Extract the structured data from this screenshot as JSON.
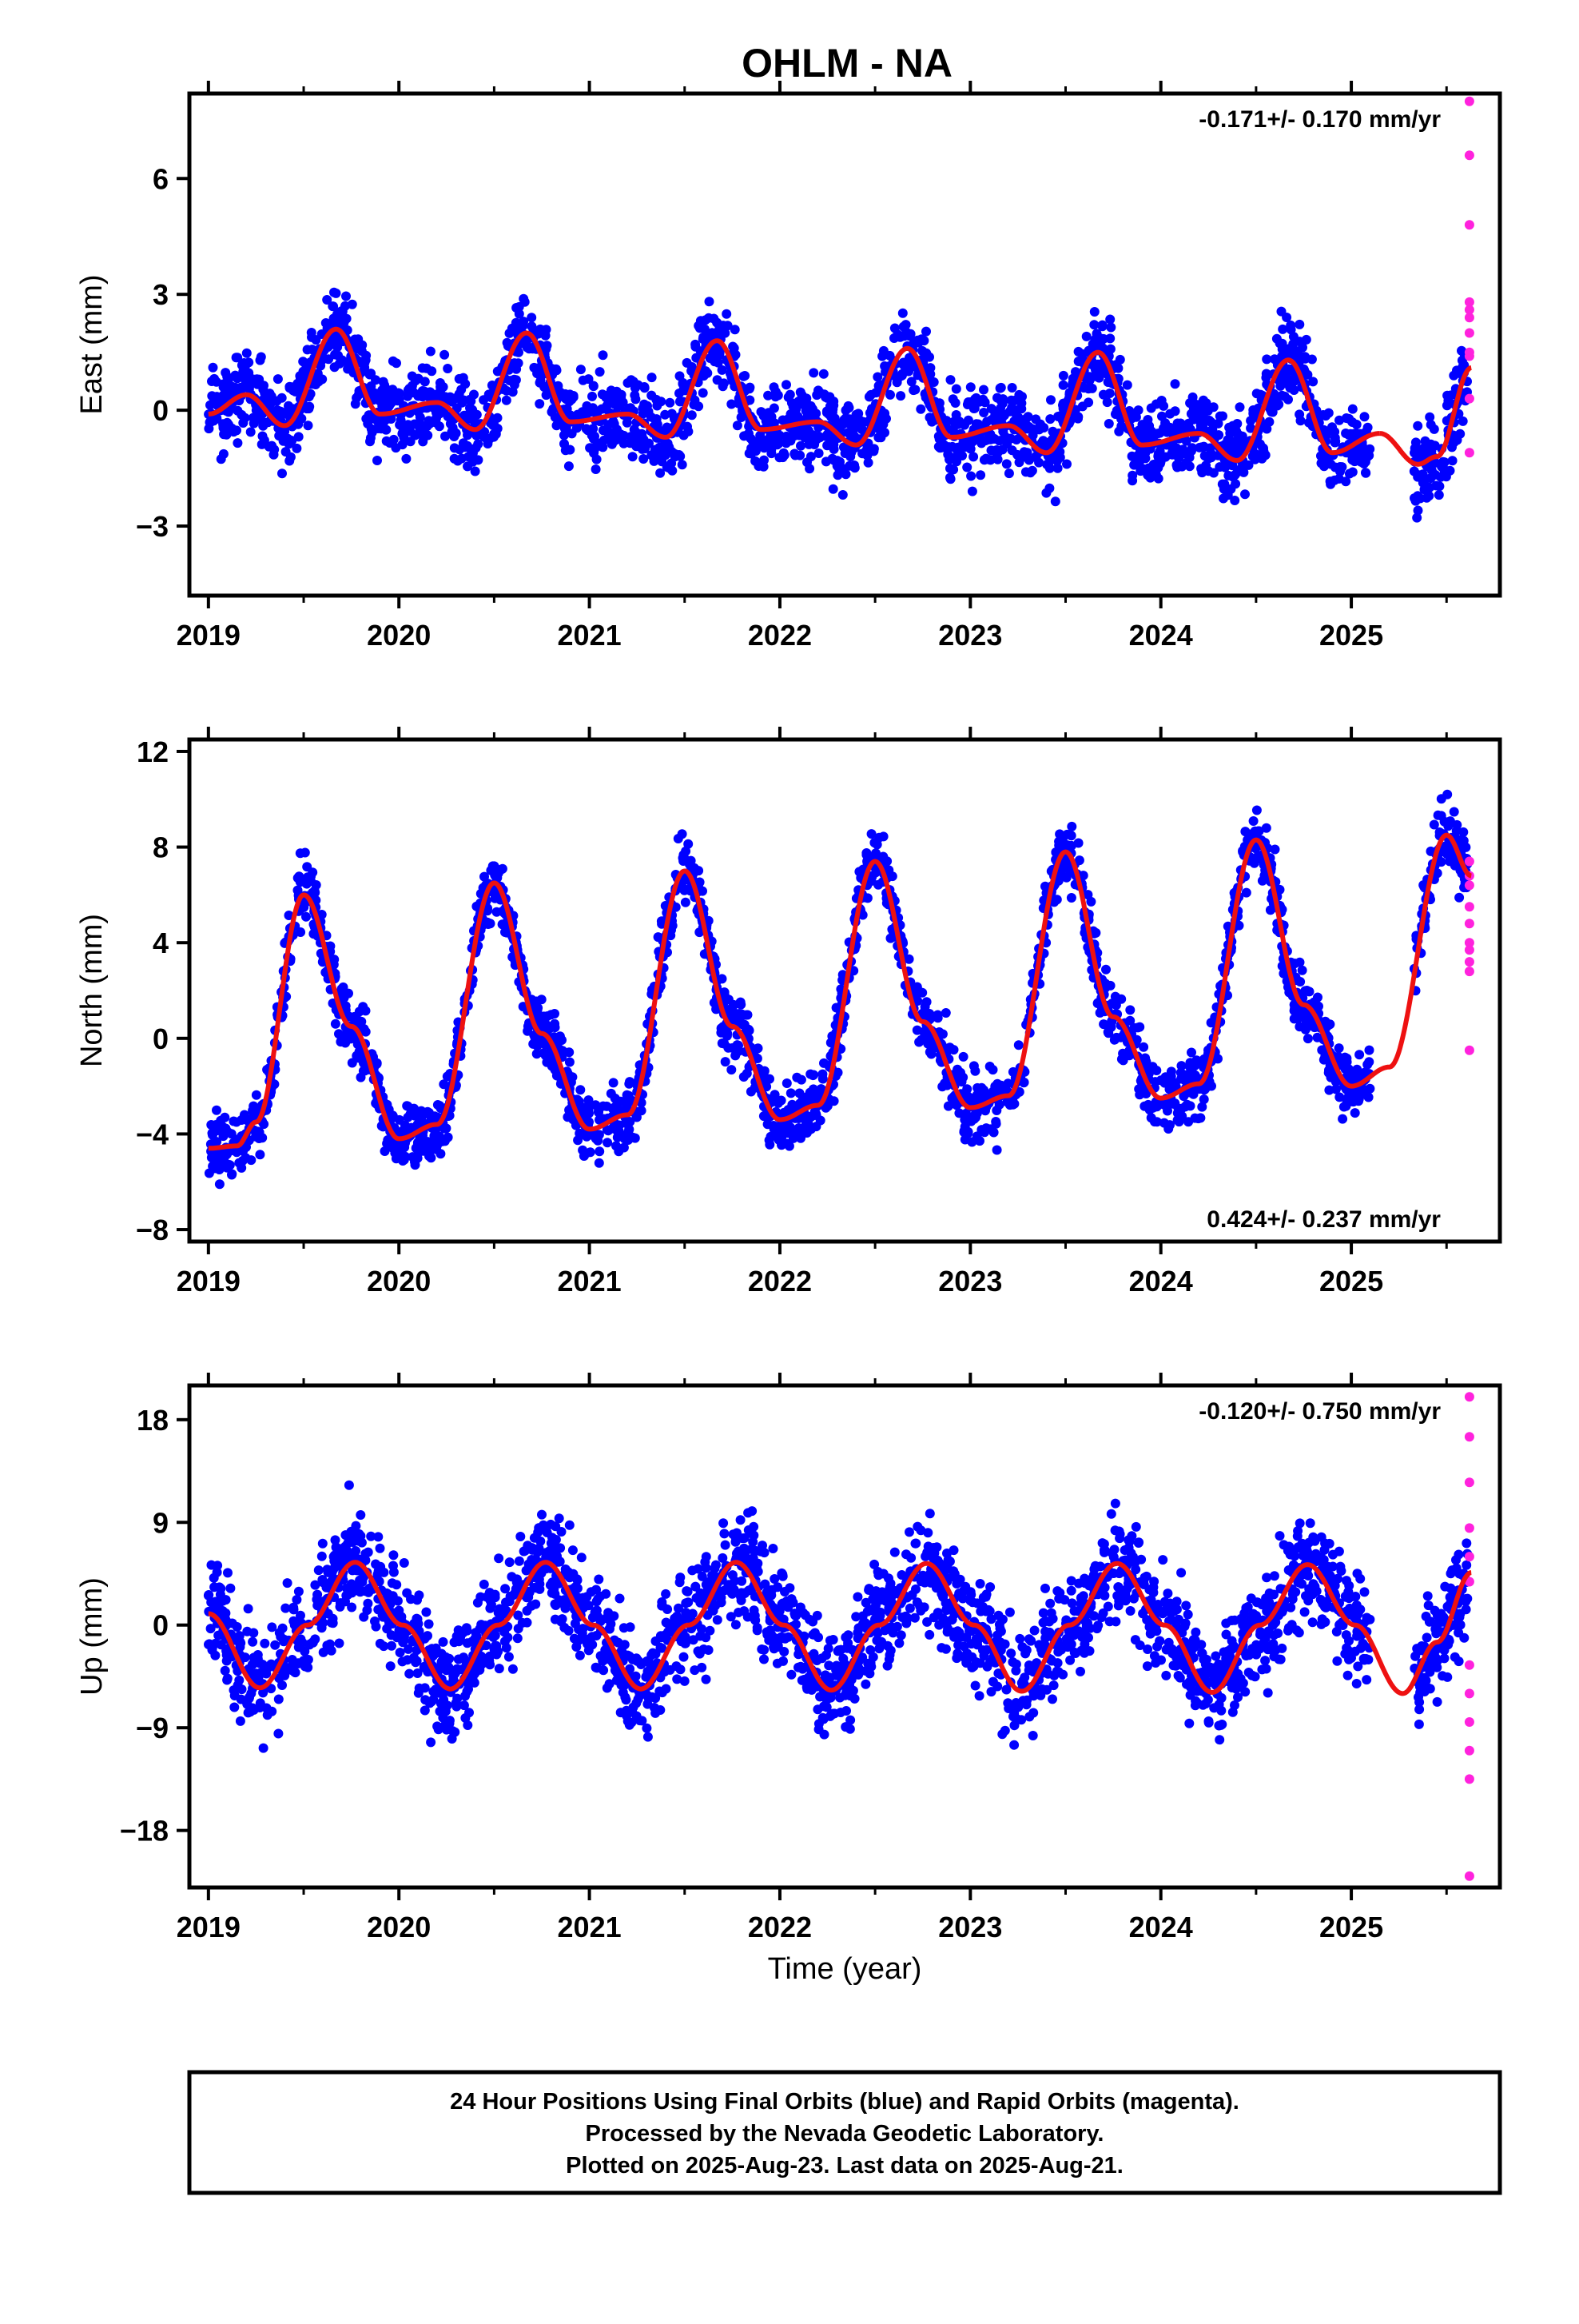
{
  "chart_data": [
    {
      "type": "scatter",
      "title": "OHLM - NA",
      "ylabel": "East (mm)",
      "xlabel": "",
      "xlim": [
        2018.9,
        2025.78
      ],
      "ylim": [
        -4.8,
        8.2
      ],
      "yticks": [
        -3,
        0,
        3,
        6
      ],
      "xticks": [
        2019,
        2020,
        2021,
        2022,
        2023,
        2024,
        2025
      ],
      "rate": "-0.171+/- 0.170 mm/yr",
      "rate_position": "top-right",
      "grid": false,
      "model": {
        "color": "#ee1111",
        "segments": [
          {
            "x": [
              2019.0,
              2019.2,
              2019.4,
              2019.67,
              2019.9,
              2020.2,
              2020.4,
              2020.67,
              2020.9,
              2021.2,
              2021.4,
              2021.67,
              2021.9,
              2022.2,
              2022.4,
              2022.67,
              2022.9,
              2023.2,
              2023.4,
              2023.67,
              2023.9,
              2024.2,
              2024.4,
              2024.67,
              2024.9,
              2025.15
            ],
            "y": [
              -0.1,
              0.4,
              -0.4,
              2.1,
              -0.1,
              0.2,
              -0.5,
              2.0,
              -0.3,
              -0.1,
              -0.7,
              1.8,
              -0.5,
              -0.3,
              -0.9,
              1.6,
              -0.7,
              -0.4,
              -1.1,
              1.5,
              -0.9,
              -0.6,
              -1.3,
              1.3,
              -1.1,
              -0.6
            ]
          },
          {
            "x": [
              2025.15,
              2025.35,
              2025.45,
              2025.63
            ],
            "y": [
              -0.6,
              -1.4,
              -1.2,
              1.1
            ]
          }
        ]
      },
      "series": [
        {
          "name": "Final Orbits",
          "color": "#0000ff",
          "gen": {
            "seed": 11,
            "spans": [
              [
                2019.0,
                2025.1
              ],
              [
                2025.33,
                2025.61
              ]
            ],
            "count": 2400,
            "anchors": [
              [
                2019.0,
                -0.1
              ],
              [
                2019.2,
                0.4
              ],
              [
                2019.4,
                -0.4
              ],
              [
                2019.67,
                2.1
              ],
              [
                2019.9,
                -0.1
              ],
              [
                2020.2,
                0.2
              ],
              [
                2020.4,
                -0.5
              ],
              [
                2020.67,
                2.0
              ],
              [
                2020.9,
                -0.3
              ],
              [
                2021.2,
                -0.1
              ],
              [
                2021.4,
                -0.7
              ],
              [
                2021.67,
                1.8
              ],
              [
                2021.9,
                -0.5
              ],
              [
                2022.2,
                -0.3
              ],
              [
                2022.4,
                -0.9
              ],
              [
                2022.67,
                1.6
              ],
              [
                2022.9,
                -0.7
              ],
              [
                2023.2,
                -0.4
              ],
              [
                2023.4,
                -1.1
              ],
              [
                2023.67,
                1.5
              ],
              [
                2023.9,
                -0.9
              ],
              [
                2024.2,
                -0.6
              ],
              [
                2024.4,
                -1.3
              ],
              [
                2024.67,
                1.3
              ],
              [
                2024.9,
                -1.1
              ],
              [
                2025.15,
                -0.6
              ],
              [
                2025.35,
                -1.4
              ],
              [
                2025.45,
                -1.2
              ],
              [
                2025.63,
                1.1
              ]
            ],
            "noise": 0.85
          }
        },
        {
          "name": "Rapid Orbits",
          "color": "#ff22dd",
          "x": [
            2025.62,
            2025.62,
            2025.62,
            2025.62,
            2025.62,
            2025.62,
            2025.62,
            2025.62,
            2025.62,
            2025.62,
            2025.62
          ],
          "values": [
            8.0,
            6.6,
            4.8,
            2.8,
            2.6,
            2.4,
            2.0,
            1.5,
            1.4,
            0.3,
            -1.1
          ]
        }
      ]
    },
    {
      "type": "scatter",
      "title": "",
      "ylabel": "North (mm)",
      "xlabel": "",
      "xlim": [
        2018.9,
        2025.78
      ],
      "ylim": [
        -8.5,
        12.5
      ],
      "yticks": [
        -8,
        -4,
        0,
        4,
        8,
        12
      ],
      "xticks": [
        2019,
        2020,
        2021,
        2022,
        2023,
        2024,
        2025
      ],
      "rate": "0.424+/- 0.237 mm/yr",
      "rate_position": "bottom-right",
      "grid": false,
      "model": {
        "color": "#ee1111",
        "segments": [
          {
            "x": [
              2019.0,
              2019.15,
              2019.25,
              2019.5,
              2019.75,
              2020.0,
              2020.2,
              2020.5,
              2020.75,
              2021.0,
              2021.2,
              2021.5,
              2021.75,
              2022.0,
              2022.2,
              2022.5,
              2022.75,
              2023.0,
              2023.2,
              2023.5,
              2023.75,
              2024.0,
              2024.2,
              2024.5,
              2024.75,
              2025.0,
              2025.2,
              2025.5,
              2025.63
            ],
            "y": [
              -4.6,
              -4.5,
              -3.5,
              6.0,
              0.5,
              -4.2,
              -3.6,
              6.5,
              0.2,
              -3.8,
              -3.2,
              7.0,
              0.5,
              -3.4,
              -2.8,
              7.4,
              0.7,
              -2.9,
              -2.4,
              7.8,
              0.9,
              -2.5,
              -1.9,
              8.3,
              1.4,
              -2.0,
              -1.2,
              8.5,
              6.8
            ]
          }
        ]
      },
      "series": [
        {
          "name": "Final Orbits",
          "color": "#0000ff",
          "gen": {
            "seed": 22,
            "spans": [
              [
                2019.0,
                2025.1
              ],
              [
                2025.33,
                2025.61
              ]
            ],
            "count": 2400,
            "anchors": [
              [
                2019.0,
                -4.6
              ],
              [
                2019.15,
                -4.5
              ],
              [
                2019.25,
                -3.5
              ],
              [
                2019.5,
                6.0
              ],
              [
                2019.75,
                0.5
              ],
              [
                2020.0,
                -4.2
              ],
              [
                2020.2,
                -3.6
              ],
              [
                2020.5,
                6.5
              ],
              [
                2020.75,
                0.2
              ],
              [
                2021.0,
                -3.8
              ],
              [
                2021.2,
                -3.2
              ],
              [
                2021.5,
                7.0
              ],
              [
                2021.75,
                0.5
              ],
              [
                2022.0,
                -3.4
              ],
              [
                2022.2,
                -2.8
              ],
              [
                2022.5,
                7.4
              ],
              [
                2022.75,
                0.7
              ],
              [
                2023.0,
                -2.9
              ],
              [
                2023.2,
                -2.4
              ],
              [
                2023.5,
                7.8
              ],
              [
                2023.75,
                0.9
              ],
              [
                2024.0,
                -2.5
              ],
              [
                2024.2,
                -1.9
              ],
              [
                2024.5,
                8.3
              ],
              [
                2024.75,
                1.4
              ],
              [
                2025.0,
                -2.0
              ],
              [
                2025.2,
                -1.2
              ],
              [
                2025.5,
                8.5
              ],
              [
                2025.63,
                6.8
              ]
            ],
            "noise": 1.05
          }
        },
        {
          "name": "Rapid Orbits",
          "color": "#ff22dd",
          "x": [
            2025.62,
            2025.62,
            2025.62,
            2025.62,
            2025.62,
            2025.62,
            2025.62,
            2025.62,
            2025.62,
            2025.62
          ],
          "values": [
            7.4,
            6.8,
            6.4,
            5.5,
            4.8,
            4.0,
            3.7,
            3.2,
            2.8,
            -0.5
          ]
        }
      ]
    },
    {
      "type": "scatter",
      "title": "",
      "ylabel": "Up (mm)",
      "xlabel": "Time (year)",
      "xlim": [
        2018.9,
        2025.78
      ],
      "ylim": [
        -23,
        21
      ],
      "yticks": [
        -18,
        -9,
        0,
        9,
        18
      ],
      "xticks": [
        2019,
        2020,
        2021,
        2022,
        2023,
        2024,
        2025
      ],
      "rate": "-0.120+/- 0.750 mm/yr",
      "rate_position": "top-right",
      "grid": false,
      "model": {
        "color": "#ee1111",
        "segments": [
          {
            "x": [
              2019.0,
              2019.27,
              2019.52,
              2019.77,
              2020.02,
              2020.27,
              2020.52,
              2020.77,
              2021.02,
              2021.27,
              2021.52,
              2021.77,
              2022.02,
              2022.27,
              2022.52,
              2022.77,
              2023.02,
              2023.27,
              2023.52,
              2023.77,
              2024.02,
              2024.27,
              2024.52,
              2024.77,
              2025.02,
              2025.27,
              2025.45,
              2025.63
            ],
            "y": [
              1.0,
              -5.5,
              0.0,
              5.5,
              0.0,
              -5.6,
              0.0,
              5.5,
              0.0,
              -5.6,
              0.0,
              5.5,
              0.0,
              -5.7,
              0.0,
              5.4,
              0.0,
              -5.8,
              0.0,
              5.4,
              0.0,
              -5.9,
              0.0,
              5.3,
              0.0,
              -6.0,
              -1.5,
              4.6
            ]
          }
        ]
      },
      "series": [
        {
          "name": "Final Orbits",
          "color": "#0000ff",
          "gen": {
            "seed": 33,
            "spans": [
              [
                2019.0,
                2025.1
              ],
              [
                2025.33,
                2025.61
              ]
            ],
            "count": 2400,
            "anchors": [
              [
                2019.0,
                1.0
              ],
              [
                2019.27,
                -5.5
              ],
              [
                2019.52,
                0.0
              ],
              [
                2019.77,
                5.5
              ],
              [
                2020.02,
                0.0
              ],
              [
                2020.27,
                -5.6
              ],
              [
                2020.52,
                0.0
              ],
              [
                2020.77,
                5.5
              ],
              [
                2021.02,
                0.0
              ],
              [
                2021.27,
                -5.6
              ],
              [
                2021.52,
                0.0
              ],
              [
                2021.77,
                5.5
              ],
              [
                2022.02,
                0.0
              ],
              [
                2022.27,
                -5.7
              ],
              [
                2022.52,
                0.0
              ],
              [
                2022.77,
                5.4
              ],
              [
                2023.02,
                0.0
              ],
              [
                2023.27,
                -5.8
              ],
              [
                2023.52,
                0.0
              ],
              [
                2023.77,
                5.4
              ],
              [
                2024.02,
                0.0
              ],
              [
                2024.27,
                -5.9
              ],
              [
                2024.52,
                0.0
              ],
              [
                2024.77,
                5.3
              ],
              [
                2025.02,
                0.0
              ],
              [
                2025.27,
                -6.0
              ],
              [
                2025.45,
                -1.5
              ],
              [
                2025.63,
                4.6
              ]
            ],
            "noise": 3.6
          }
        },
        {
          "name": "Rapid Orbits",
          "color": "#ff22dd",
          "x": [
            2025.62,
            2025.62,
            2025.62,
            2025.62,
            2025.62,
            2025.62,
            2025.62,
            2025.62,
            2025.62,
            2025.62,
            2025.62,
            2025.62
          ],
          "values": [
            20.0,
            16.5,
            12.5,
            8.5,
            6.0,
            3.8,
            -3.5,
            -6.0,
            -8.5,
            -11.0,
            -13.5,
            -22.0
          ]
        }
      ]
    }
  ],
  "footer": {
    "line1": "24 Hour Positions Using Final Orbits (blue) and Rapid Orbits (magenta).",
    "line2": "Processed by the Nevada Geodetic Laboratory.",
    "line3": "Plotted on 2025-Aug-23. Last data on 2025-Aug-21."
  }
}
